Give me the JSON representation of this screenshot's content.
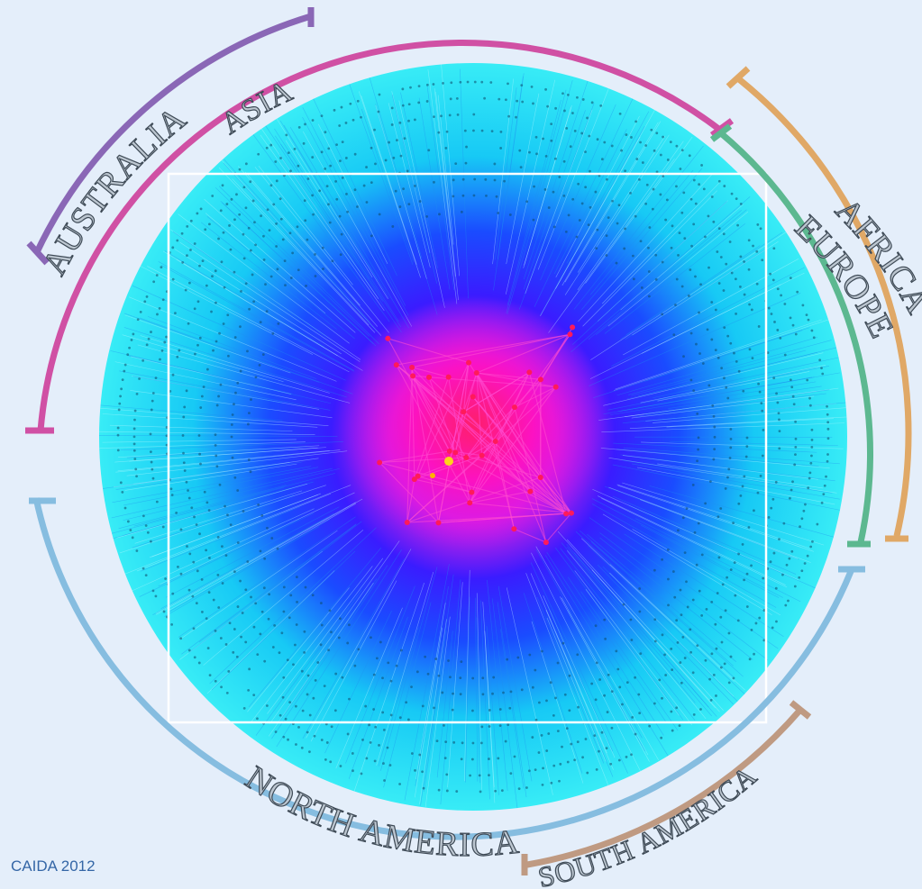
{
  "credit": "CAIDA 2012",
  "regions": [
    {
      "label": "AUSTRALIA",
      "color": "#8a67b6"
    },
    {
      "label": "ASIA",
      "color": "#d050a4"
    },
    {
      "label": "AFRICA",
      "color": "#e0a866"
    },
    {
      "label": "EUROPE",
      "color": "#5cb890"
    },
    {
      "label": "NORTH AMERICA",
      "color": "#86bde0"
    },
    {
      "label": "SOUTH AMERICA",
      "color": "#bf9a82"
    }
  ],
  "colors": {
    "background": "#e4eefa",
    "periphery": "#2fe6f2",
    "mid": "#1a2bff",
    "core": "#ff10b8",
    "hub": "#ffd21a"
  }
}
